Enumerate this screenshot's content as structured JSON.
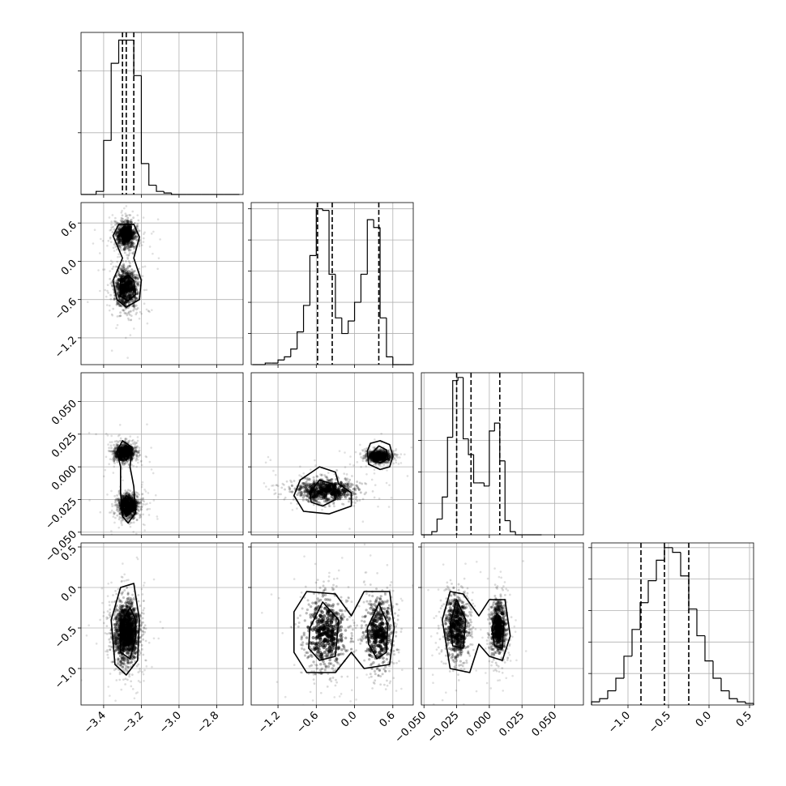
{
  "figure": {
    "background": "#ffffff",
    "ink": "#000000",
    "grid_color": "#b0b0b0"
  },
  "chart_data": {
    "type": "corner",
    "parameters": [
      {
        "id": "p1",
        "ticks": [
          -3.4,
          -3.2,
          -3.0,
          -2.8
        ],
        "tick_labels": [
          "−3.4",
          "−3.2",
          "−3.0",
          "−2.8"
        ],
        "range": [
          -3.52,
          -2.66
        ]
      },
      {
        "id": "p2",
        "ticks": [
          -1.2,
          -0.6,
          0.0,
          0.6
        ],
        "tick_labels": [
          "−1.2",
          "−0.6",
          "0.0",
          "0.6"
        ],
        "range": [
          -1.62,
          0.92
        ]
      },
      {
        "id": "p3",
        "ticks": [
          -0.05,
          -0.025,
          0.0,
          0.025,
          0.05
        ],
        "tick_labels": [
          "−0.050",
          "−0.025",
          "0.000",
          "0.025",
          "0.050"
        ],
        "range": [
          -0.052,
          0.072
        ]
      },
      {
        "id": "p4",
        "ticks": [
          -1.0,
          -0.5,
          0.0,
          0.5
        ],
        "tick_labels": [
          "−1.0",
          "−0.5",
          "0.0",
          "0.5"
        ],
        "range": [
          -1.45,
          0.55
        ]
      }
    ],
    "histograms": [
      {
        "param": 0,
        "edges": [
          -3.52,
          -3.48,
          -3.44,
          -3.4,
          -3.36,
          -3.32,
          -3.28,
          -3.24,
          -3.2,
          -3.16,
          -3.12,
          -3.08,
          -3.04,
          -3.0,
          -2.96,
          -2.92,
          -2.88,
          -2.84,
          -2.8,
          -2.76,
          -2.72,
          -2.68
        ],
        "counts": [
          0,
          0,
          2,
          35,
          85,
          100,
          100,
          77,
          20,
          6,
          2,
          1,
          0,
          0,
          0,
          0,
          0,
          0,
          0,
          0,
          0
        ],
        "quantiles": [
          -3.3,
          -3.28,
          -3.24
        ],
        "ymax": 105,
        "grid_y": [
          40,
          80
        ]
      },
      {
        "param": 1,
        "edges": [
          -1.6,
          -1.5,
          -1.4,
          -1.3,
          -1.2,
          -1.1,
          -1.0,
          -0.9,
          -0.8,
          -0.7,
          -0.6,
          -0.5,
          -0.4,
          -0.3,
          -0.2,
          -0.1,
          0.0,
          0.1,
          0.2,
          0.3,
          0.4,
          0.5,
          0.6,
          0.7,
          0.8,
          0.9
        ],
        "counts": [
          0,
          0,
          1,
          1,
          3,
          5,
          10,
          21,
          38,
          70,
          100,
          99,
          58,
          30,
          20,
          28,
          40,
          58,
          93,
          88,
          30,
          5,
          0,
          0,
          0
        ],
        "quantiles": [
          -0.58,
          -0.35,
          0.38
        ],
        "ymax": 104,
        "grid_y": [
          20,
          40,
          60,
          80,
          100
        ]
      },
      {
        "param": 2,
        "edges": [
          -0.052,
          -0.048,
          -0.044,
          -0.04,
          -0.036,
          -0.032,
          -0.028,
          -0.024,
          -0.02,
          -0.016,
          -0.012,
          -0.008,
          -0.004,
          0.0,
          0.004,
          0.008,
          0.012,
          0.016,
          0.02,
          0.024,
          0.028,
          0.032,
          0.036,
          0.04
        ],
        "counts": [
          0,
          0,
          2,
          10,
          24,
          62,
          98,
          100,
          61,
          51,
          33,
          33,
          31,
          66,
          71,
          47,
          9,
          2,
          0,
          0,
          0,
          0,
          0
        ],
        "quantiles": [
          -0.025,
          -0.014,
          0.008
        ],
        "ymax": 103,
        "grid_y": [
          20,
          40,
          60,
          80
        ]
      },
      {
        "param": 3,
        "edges": [
          -1.45,
          -1.35,
          -1.25,
          -1.15,
          -1.05,
          -0.95,
          -0.85,
          -0.75,
          -0.65,
          -0.55,
          -0.45,
          -0.35,
          -0.25,
          -0.15,
          -0.05,
          0.05,
          0.15,
          0.25,
          0.35,
          0.45,
          0.55
        ],
        "counts": [
          2,
          4,
          9,
          17,
          31,
          48,
          65,
          79,
          92,
          100,
          97,
          82,
          61,
          44,
          28,
          17,
          9,
          4,
          2,
          1
        ],
        "quantiles": [
          -0.84,
          -0.55,
          -0.25
        ],
        "ymax": 103,
        "grid_y": [
          20,
          40,
          60,
          80,
          100
        ]
      }
    ],
    "pairs": [
      {
        "x": 0,
        "y": 1,
        "modes": [
          {
            "cx": -3.28,
            "cy": 0.42,
            "sx": 0.035,
            "sy": 0.14,
            "w": 0.45
          },
          {
            "cx": -3.28,
            "cy": -0.42,
            "sx": 0.04,
            "sy": 0.2,
            "w": 0.55
          }
        ],
        "contours": [
          [
            [
              -3.24,
              0.58
            ],
            [
              -3.32,
              0.58
            ],
            [
              -3.35,
              0.4
            ],
            [
              -3.3,
              0.05
            ],
            [
              -3.35,
              -0.3
            ],
            [
              -3.33,
              -0.6
            ],
            [
              -3.28,
              -0.72
            ],
            [
              -3.21,
              -0.6
            ],
            [
              -3.2,
              -0.3
            ],
            [
              -3.24,
              0.05
            ],
            [
              -3.21,
              0.38
            ]
          ],
          [
            [
              -3.26,
              0.52
            ],
            [
              -3.3,
              0.52
            ],
            [
              -3.31,
              0.4
            ],
            [
              -3.29,
              0.32
            ],
            [
              -3.25,
              0.36
            ]
          ],
          [
            [
              -3.27,
              -0.22
            ],
            [
              -3.31,
              -0.3
            ],
            [
              -3.31,
              -0.55
            ],
            [
              -3.27,
              -0.62
            ],
            [
              -3.23,
              -0.52
            ],
            [
              -3.24,
              -0.3
            ]
          ]
        ]
      },
      {
        "x": 0,
        "y": 2,
        "modes": [
          {
            "cx": -3.29,
            "cy": 0.011,
            "sx": 0.035,
            "sy": 0.0045,
            "w": 0.45
          },
          {
            "cx": -3.27,
            "cy": -0.03,
            "sx": 0.035,
            "sy": 0.006,
            "w": 0.55
          }
        ],
        "contours": [
          [
            [
              -3.3,
              0.02
            ],
            [
              -3.33,
              0.012
            ],
            [
              -3.31,
              0.0
            ],
            [
              -3.31,
              -0.02
            ],
            [
              -3.3,
              -0.038
            ],
            [
              -3.27,
              -0.043
            ],
            [
              -3.23,
              -0.035
            ],
            [
              -3.24,
              -0.015
            ],
            [
              -3.26,
              0.0
            ],
            [
              -3.25,
              0.015
            ]
          ],
          [
            [
              -3.29,
              0.015
            ],
            [
              -3.31,
              0.01
            ],
            [
              -3.28,
              0.005
            ],
            [
              -3.26,
              0.01
            ]
          ],
          [
            [
              -3.28,
              -0.022
            ],
            [
              -3.3,
              -0.03
            ],
            [
              -3.28,
              -0.038
            ],
            [
              -3.25,
              -0.033
            ],
            [
              -3.26,
              -0.025
            ]
          ]
        ]
      },
      {
        "x": 1,
        "y": 2,
        "modes": [
          {
            "cx": 0.38,
            "cy": 0.008,
            "sx": 0.12,
            "sy": 0.003,
            "w": 0.45
          },
          {
            "cx": -0.45,
            "cy": -0.018,
            "sx": 0.3,
            "sy": 0.0055,
            "w": 0.55
          }
        ],
        "contours": [
          [
            [
              0.2,
              0.012
            ],
            [
              0.25,
              0.018
            ],
            [
              0.4,
              0.02
            ],
            [
              0.55,
              0.017
            ],
            [
              0.6,
              0.008
            ],
            [
              0.55,
              0.0
            ],
            [
              0.4,
              -0.002
            ],
            [
              0.22,
              0.002
            ]
          ],
          [
            [
              0.3,
              0.012
            ],
            [
              0.38,
              0.016
            ],
            [
              0.5,
              0.013
            ],
            [
              0.52,
              0.006
            ],
            [
              0.4,
              0.003
            ],
            [
              0.3,
              0.005
            ]
          ],
          [
            [
              -0.95,
              -0.022
            ],
            [
              -0.85,
              -0.01
            ],
            [
              -0.55,
              0.0
            ],
            [
              -0.3,
              -0.004
            ],
            [
              -0.25,
              -0.013
            ],
            [
              -0.05,
              -0.02
            ],
            [
              -0.05,
              -0.03
            ],
            [
              -0.4,
              -0.036
            ],
            [
              -0.8,
              -0.034
            ]
          ],
          [
            [
              -0.7,
              -0.02
            ],
            [
              -0.55,
              -0.01
            ],
            [
              -0.35,
              -0.013
            ],
            [
              -0.3,
              -0.025
            ],
            [
              -0.5,
              -0.03
            ],
            [
              -0.68,
              -0.027
            ]
          ]
        ]
      },
      {
        "x": 0,
        "y": 3,
        "modes": [
          {
            "cx": -3.28,
            "cy": -0.55,
            "sx": 0.045,
            "sy": 0.25,
            "w": 1.0
          }
        ],
        "contours": [
          [
            [
              -3.24,
              0.05
            ],
            [
              -3.31,
              0.0
            ],
            [
              -3.36,
              -0.4
            ],
            [
              -3.34,
              -0.95
            ],
            [
              -3.28,
              -1.08
            ],
            [
              -3.22,
              -0.9
            ],
            [
              -3.21,
              -0.4
            ]
          ],
          [
            [
              -3.26,
              -0.25
            ],
            [
              -3.31,
              -0.45
            ],
            [
              -3.31,
              -0.8
            ],
            [
              -3.26,
              -0.88
            ],
            [
              -3.23,
              -0.62
            ],
            [
              -3.23,
              -0.4
            ]
          ]
        ]
      },
      {
        "x": 1,
        "y": 3,
        "modes": [
          {
            "cx": -0.45,
            "cy": -0.55,
            "sx": 0.22,
            "sy": 0.28,
            "w": 0.55
          },
          {
            "cx": 0.38,
            "cy": -0.55,
            "sx": 0.15,
            "sy": 0.28,
            "w": 0.45
          }
        ],
        "contours": [
          [
            [
              -0.95,
              -0.3
            ],
            [
              -0.75,
              -0.05
            ],
            [
              -0.3,
              -0.08
            ],
            [
              -0.05,
              -0.35
            ],
            [
              0.15,
              -0.05
            ],
            [
              0.55,
              -0.05
            ],
            [
              0.62,
              -0.5
            ],
            [
              0.55,
              -0.95
            ],
            [
              0.15,
              -1.0
            ],
            [
              -0.05,
              -0.8
            ],
            [
              -0.3,
              -1.05
            ],
            [
              -0.75,
              -1.05
            ],
            [
              -0.95,
              -0.8
            ]
          ],
          [
            [
              -0.7,
              -0.5
            ],
            [
              -0.5,
              -0.18
            ],
            [
              -0.25,
              -0.4
            ],
            [
              -0.3,
              -0.85
            ],
            [
              -0.55,
              -0.9
            ],
            [
              -0.72,
              -0.75
            ]
          ],
          [
            [
              0.2,
              -0.5
            ],
            [
              0.38,
              -0.2
            ],
            [
              0.52,
              -0.45
            ],
            [
              0.5,
              -0.8
            ],
            [
              0.35,
              -0.88
            ],
            [
              0.22,
              -0.7
            ]
          ]
        ]
      },
      {
        "x": 2,
        "y": 3,
        "modes": [
          {
            "cx": -0.025,
            "cy": -0.5,
            "sx": 0.006,
            "sy": 0.25,
            "w": 0.55
          },
          {
            "cx": 0.007,
            "cy": -0.5,
            "sx": 0.004,
            "sy": 0.22,
            "w": 0.45
          }
        ],
        "contours": [
          [
            [
              -0.036,
              -0.4
            ],
            [
              -0.03,
              -0.05
            ],
            [
              -0.02,
              -0.08
            ],
            [
              -0.008,
              -0.35
            ],
            [
              0.0,
              -0.15
            ],
            [
              0.012,
              -0.15
            ],
            [
              0.016,
              -0.6
            ],
            [
              0.01,
              -0.9
            ],
            [
              0.0,
              -0.85
            ],
            [
              -0.008,
              -0.7
            ],
            [
              -0.015,
              -1.05
            ],
            [
              -0.03,
              -1.0
            ]
          ],
          [
            [
              -0.03,
              -0.45
            ],
            [
              -0.025,
              -0.15
            ],
            [
              -0.018,
              -0.4
            ],
            [
              -0.02,
              -0.75
            ],
            [
              -0.028,
              -0.72
            ]
          ],
          [
            [
              0.002,
              -0.5
            ],
            [
              0.006,
              -0.32
            ],
            [
              0.011,
              -0.45
            ],
            [
              0.01,
              -0.75
            ],
            [
              0.004,
              -0.72
            ]
          ]
        ]
      }
    ]
  }
}
